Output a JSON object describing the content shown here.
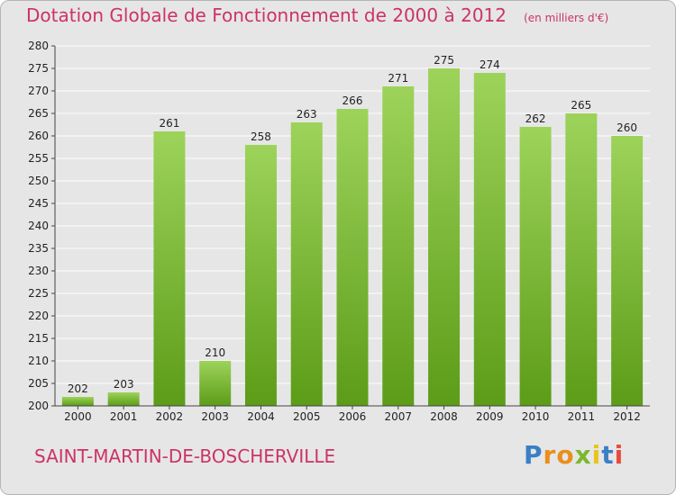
{
  "header": {
    "title": "Dotation Globale de Fonctionnement de 2000 à 2012",
    "unit": "(en milliers d'€)"
  },
  "commune": "SAINT-MARTIN-DE-BOSCHERVILLE",
  "logo": {
    "letters": [
      "P",
      "r",
      "o",
      "x",
      "i",
      "t",
      "i"
    ],
    "colors": [
      "#3a7fc4",
      "#e98f1d",
      "#e98f1d",
      "#7cb82f",
      "#e8c51a",
      "#3a7fc4",
      "#e84c3d"
    ]
  },
  "colors": {
    "bar_top": "#9dd35a",
    "bar_bottom": "#5c9c18",
    "title": "#cc3366",
    "plot_bg": "#e6e6e6",
    "grid": "#ffffff"
  },
  "chart_data": {
    "type": "bar",
    "categories": [
      "2000",
      "2001",
      "2002",
      "2003",
      "2004",
      "2005",
      "2006",
      "2007",
      "2008",
      "2009",
      "2010",
      "2011",
      "2012"
    ],
    "values": [
      202,
      203,
      261,
      210,
      258,
      263,
      266,
      271,
      275,
      274,
      262,
      265,
      260
    ],
    "ylim": [
      200,
      280
    ],
    "ytick_step": 5,
    "grid": true
  }
}
